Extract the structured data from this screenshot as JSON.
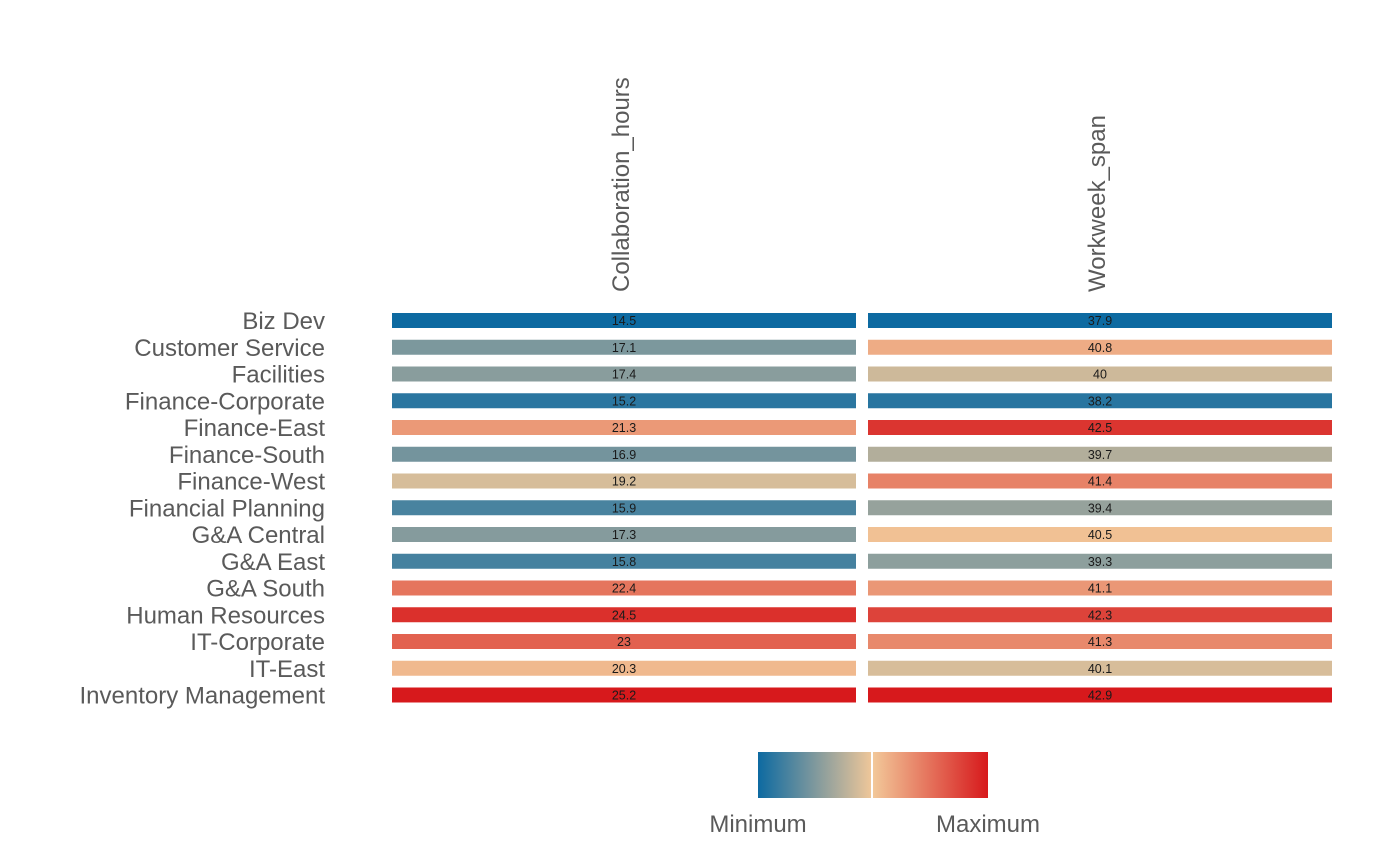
{
  "chart_data": {
    "type": "heatmap",
    "rows": [
      "Biz Dev",
      "Customer Service",
      "Facilities",
      "Finance-Corporate",
      "Finance-East",
      "Finance-South",
      "Finance-West",
      "Financial Planning",
      "G&A Central",
      "G&A East",
      "G&A South",
      "Human Resources",
      "IT-Corporate",
      "IT-East",
      "Inventory Management"
    ],
    "columns": [
      "Collaboration_hours",
      "Workweek_span"
    ],
    "values": [
      [
        14.5,
        37.9
      ],
      [
        17.1,
        40.8
      ],
      [
        17.4,
        40
      ],
      [
        15.2,
        38.2
      ],
      [
        21.3,
        42.5
      ],
      [
        16.9,
        39.7
      ],
      [
        19.2,
        41.4
      ],
      [
        15.9,
        39.4
      ],
      [
        17.3,
        40.5
      ],
      [
        15.8,
        39.3
      ],
      [
        22.4,
        41.1
      ],
      [
        24.5,
        42.3
      ],
      [
        23,
        41.3
      ],
      [
        20.3,
        40.1
      ],
      [
        25.2,
        42.9
      ]
    ],
    "color_scale": {
      "low": "#0d6aa1",
      "mid": "#f2c899",
      "high": "#d7191c"
    },
    "legend": {
      "min_label": "Minimum",
      "max_label": "Maximum",
      "placement": "bottom"
    }
  }
}
